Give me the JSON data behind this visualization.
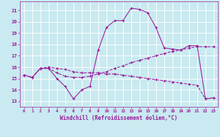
{
  "bg_color": "#c8eaf0",
  "grid_color": "#ffffff",
  "line_color": "#9b1a9b",
  "xlabel": "Windchill (Refroidissement éolien,°C)",
  "xlim": [
    -0.5,
    23.5
  ],
  "ylim": [
    12.5,
    21.8
  ],
  "yticks": [
    13,
    14,
    15,
    16,
    17,
    18,
    19,
    20,
    21
  ],
  "xticks": [
    0,
    1,
    2,
    3,
    4,
    5,
    6,
    7,
    8,
    9,
    10,
    11,
    12,
    13,
    14,
    15,
    16,
    17,
    18,
    19,
    20,
    21,
    22,
    23
  ],
  "line1_x": [
    0,
    1,
    2,
    3,
    4,
    5,
    6,
    7,
    8,
    9,
    10,
    11,
    12,
    13,
    14,
    15,
    16,
    17,
    18,
    19,
    20,
    21,
    22,
    23
  ],
  "line1_y": [
    15.3,
    15.1,
    15.9,
    15.9,
    15.0,
    14.3,
    13.2,
    14.0,
    14.3,
    17.5,
    19.5,
    20.1,
    20.1,
    21.2,
    21.1,
    20.8,
    19.5,
    17.7,
    17.6,
    17.5,
    17.9,
    17.9,
    13.2,
    13.3
  ],
  "line2_x": [
    0,
    1,
    2,
    3,
    4,
    5,
    6,
    7,
    8,
    9,
    10,
    11,
    12,
    13,
    14,
    15,
    16,
    17,
    18,
    19,
    20,
    21,
    22,
    23
  ],
  "line2_y": [
    15.3,
    15.1,
    15.9,
    15.9,
    15.5,
    15.2,
    15.1,
    15.1,
    15.2,
    15.4,
    15.6,
    15.9,
    16.1,
    16.4,
    16.6,
    16.8,
    17.0,
    17.2,
    17.4,
    17.5,
    17.7,
    17.8,
    17.8,
    17.8
  ],
  "line3_x": [
    0,
    1,
    2,
    3,
    4,
    5,
    6,
    7,
    8,
    9,
    10,
    11,
    12,
    13,
    14,
    15,
    16,
    17,
    18,
    19,
    20,
    21,
    22,
    23
  ],
  "line3_y": [
    15.3,
    15.1,
    15.9,
    16.0,
    15.9,
    15.8,
    15.6,
    15.5,
    15.5,
    15.5,
    15.4,
    15.4,
    15.3,
    15.2,
    15.1,
    15.0,
    14.9,
    14.8,
    14.7,
    14.6,
    14.5,
    14.4,
    13.2,
    13.3
  ]
}
